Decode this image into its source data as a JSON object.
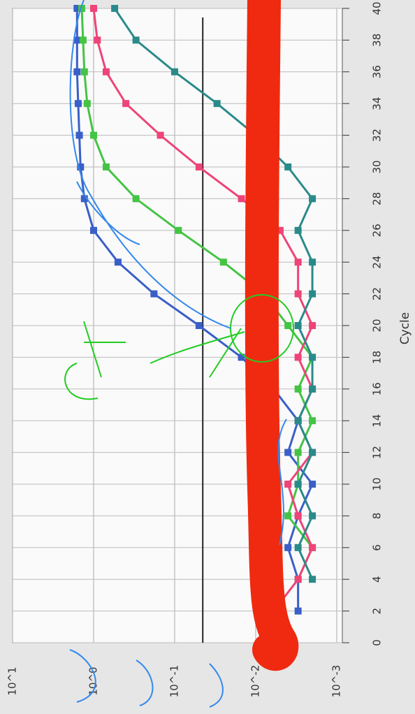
{
  "chart_data": {
    "type": "line",
    "xlabel": "Cycle",
    "x": [
      0,
      2,
      4,
      6,
      8,
      10,
      12,
      14,
      16,
      18,
      20,
      22,
      24,
      26,
      28,
      30,
      32,
      34,
      36,
      38,
      40
    ],
    "series": [
      {
        "color": "#3a5fc8",
        "values": [
          null,
          0.003,
          0.003,
          0.004,
          0.003,
          0.002,
          0.004,
          0.003,
          0.006,
          0.015,
          0.05,
          0.18,
          0.5,
          1.0,
          1.3,
          1.45,
          1.5,
          1.55,
          1.6,
          1.6,
          1.6
        ]
      },
      {
        "color": "#44c444",
        "values": [
          null,
          null,
          0.003,
          0.002,
          0.004,
          0.003,
          0.003,
          0.002,
          0.003,
          0.002,
          0.004,
          0.008,
          0.025,
          0.09,
          0.3,
          0.7,
          1.0,
          1.2,
          1.3,
          1.35,
          1.4
        ]
      },
      {
        "color": "#ee4477",
        "values": [
          null,
          0.006,
          0.003,
          0.002,
          0.003,
          0.004,
          0.002,
          0.003,
          0.002,
          0.003,
          0.002,
          0.003,
          0.003,
          0.005,
          0.015,
          0.05,
          0.15,
          0.4,
          0.7,
          0.9,
          1.0
        ]
      },
      {
        "color": "#2a8a8a",
        "values": [
          null,
          null,
          0.002,
          0.003,
          0.002,
          0.003,
          0.002,
          0.003,
          0.002,
          0.002,
          0.003,
          0.002,
          0.002,
          0.003,
          0.002,
          0.004,
          0.01,
          0.03,
          0.1,
          0.3,
          0.55
        ]
      }
    ],
    "threshold": 0.045,
    "xlim": [
      0,
      40
    ],
    "xticks": [
      0,
      2,
      4,
      6,
      8,
      10,
      12,
      14,
      16,
      18,
      20,
      22,
      24,
      26,
      28,
      30,
      32,
      34,
      36,
      38,
      40
    ],
    "ylim": [
      0.001,
      10
    ],
    "log_scale": true,
    "yticks": [
      {
        "value": 10,
        "label": "10^1"
      },
      {
        "value": 1,
        "label": "10^0"
      },
      {
        "value": 0.1,
        "label": "10^-1"
      },
      {
        "value": 0.01,
        "label": "10^-2"
      },
      {
        "value": 0.001,
        "label": "10^-3"
      }
    ],
    "grid": true
  }
}
